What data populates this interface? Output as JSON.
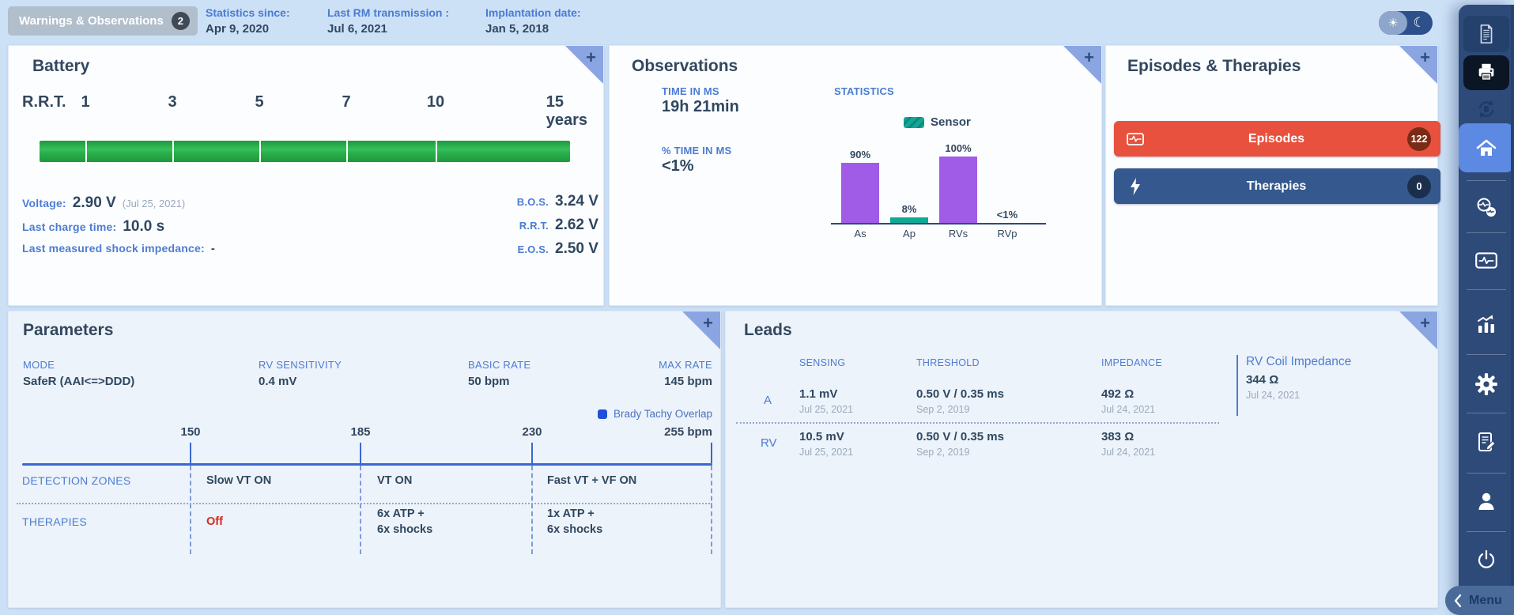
{
  "ui": {
    "plus": "+",
    "sun": "☀",
    "moon": "☾"
  },
  "topbar": {
    "warnings": {
      "label": "Warnings & Observations",
      "count": "2"
    },
    "stats": [
      {
        "label": "Statistics since:",
        "value": "Apr 9, 2020"
      },
      {
        "label": "Last RM transmission :",
        "value": "Jul 6, 2021"
      },
      {
        "label": "Implantation date:",
        "value": "Jan 5, 2018"
      }
    ]
  },
  "battery": {
    "title": "Battery",
    "scale_prefix": "R.R.T.",
    "scale_ticks": [
      "1",
      "3",
      "5",
      "7",
      "10",
      "15 years"
    ],
    "gauge_fill_percent": 100,
    "voltage": {
      "label": "Voltage:",
      "value": "2.90 V",
      "date": "(Jul 25, 2021)"
    },
    "last_charge": {
      "label": "Last charge time:",
      "value": "10.0 s"
    },
    "shock_impedance": {
      "label": "Last measured shock impedance:",
      "value": "-"
    },
    "thresholds": [
      {
        "label": "B.O.S.",
        "value": "3.24 V"
      },
      {
        "label": "R.R.T.",
        "value": "2.62 V"
      },
      {
        "label": "E.O.S.",
        "value": "2.50 V"
      }
    ]
  },
  "observations": {
    "title": "Observations",
    "time_in_ms": {
      "label": "TIME IN MS",
      "value": "19h 21min"
    },
    "pct_time_in_ms": {
      "label": "% TIME IN MS",
      "value": "<1%"
    },
    "statistics_label": "STATISTICS"
  },
  "chart_data": {
    "type": "bar",
    "title": "STATISTICS",
    "categories": [
      "As",
      "Ap",
      "RVs",
      "RVp"
    ],
    "values": [
      90,
      8,
      100,
      0.5
    ],
    "value_labels": [
      "90%",
      "8%",
      "100%",
      "<1%"
    ],
    "bar_colors": [
      "#a05ce6",
      "#12a796",
      "#a05ce6",
      "#a05ce6"
    ],
    "legend": [
      {
        "label": "Sensor",
        "color": "#12a796"
      }
    ],
    "legend_position": "top-right",
    "xlabel": "",
    "ylabel": "",
    "ylim": [
      0,
      100
    ],
    "grid": false
  },
  "episodes_therapies": {
    "title": "Episodes & Therapies",
    "episodes": {
      "label": "Episodes",
      "count": "122",
      "color": "#e8513d",
      "badge_color": "#7b2b15"
    },
    "therapies": {
      "label": "Therapies",
      "count": "0",
      "color": "#35598e",
      "badge_color": "#1b2f4d"
    }
  },
  "parameters": {
    "title": "Parameters",
    "fields": [
      {
        "label": "MODE",
        "value": "SafeR (AAI<=>DDD)"
      },
      {
        "label": "RV SENSITIVITY",
        "value": "0.4 mV"
      },
      {
        "label": "BASIC RATE",
        "value": "50 bpm"
      },
      {
        "label": "MAX RATE",
        "value": "145 bpm"
      }
    ],
    "overlap_legend": "Brady Tachy Overlap",
    "scale": {
      "boundaries": [
        "150",
        "185",
        "230"
      ],
      "end": "255 bpm"
    },
    "rows": {
      "detection_label": "DETECTION ZONES",
      "therapies_label": "THERAPIES"
    },
    "zones": [
      {
        "detection": "Slow VT ON",
        "therapy": [
          "Off"
        ],
        "therapy_is_off": true
      },
      {
        "detection": "VT ON",
        "therapy": [
          "6x ATP  +",
          "6x shocks"
        ]
      },
      {
        "detection": "Fast VT + VF ON",
        "therapy": [
          "1x ATP  +",
          "6x shocks"
        ]
      }
    ]
  },
  "leads": {
    "title": "Leads",
    "columns": [
      "SENSING",
      "THRESHOLD",
      "IMPEDANCE"
    ],
    "rv_coil": {
      "label": "RV Coil Impedance",
      "value": "344 Ω",
      "date": "Jul 24, 2021"
    },
    "rows": [
      {
        "name": "A",
        "sensing": "1.1 mV",
        "sensing_date": "Jul 25, 2021",
        "threshold": "0.50 V / 0.35 ms",
        "threshold_date": "Sep 2, 2019",
        "impedance": "492 Ω",
        "impedance_date": "Jul 24, 2021"
      },
      {
        "name": "RV",
        "sensing": "10.5 mV",
        "sensing_date": "Jul 25, 2021",
        "threshold": "0.50 V / 0.35 ms",
        "threshold_date": "Sep 2, 2019",
        "impedance": "383 Ω",
        "impedance_date": "Jul 24, 2021"
      }
    ]
  },
  "sidebar": {
    "menu_label": "Menu",
    "items": [
      "report",
      "print",
      "sync",
      "home",
      "remote-monitoring",
      "episodes-monitor",
      "statistics",
      "settings",
      "session-report",
      "user",
      "power"
    ]
  },
  "colors": {
    "page_bg": "#cde1f6",
    "card_bg": "#fcfdff",
    "tinted_card_bg": "#edf3fa",
    "accent_blue_label": "#4c7cd2",
    "value_navy": "#2f4760",
    "title_navy": "#33475e",
    "battery_green": "#25a343",
    "bar_purple": "#a05ce6",
    "bar_teal": "#12a796",
    "episodes_red": "#e8513d",
    "episodes_badge": "#7b2b15",
    "therapies_blue": "#35598e",
    "therapies_badge": "#1b2f4d",
    "sidebar_bg": "#2d4a78",
    "sidebar_active": "#5c89e2",
    "zone_line_blue": "#3a67cf",
    "overlap_swatch_blue": "#1f4fd8",
    "off_red": "#d42b1f",
    "date_gray": "#9aa9bb",
    "corner_triangle": "#8aa5e2",
    "chip_bg": "#b1becb",
    "chip_badge": "#3f4a56"
  }
}
